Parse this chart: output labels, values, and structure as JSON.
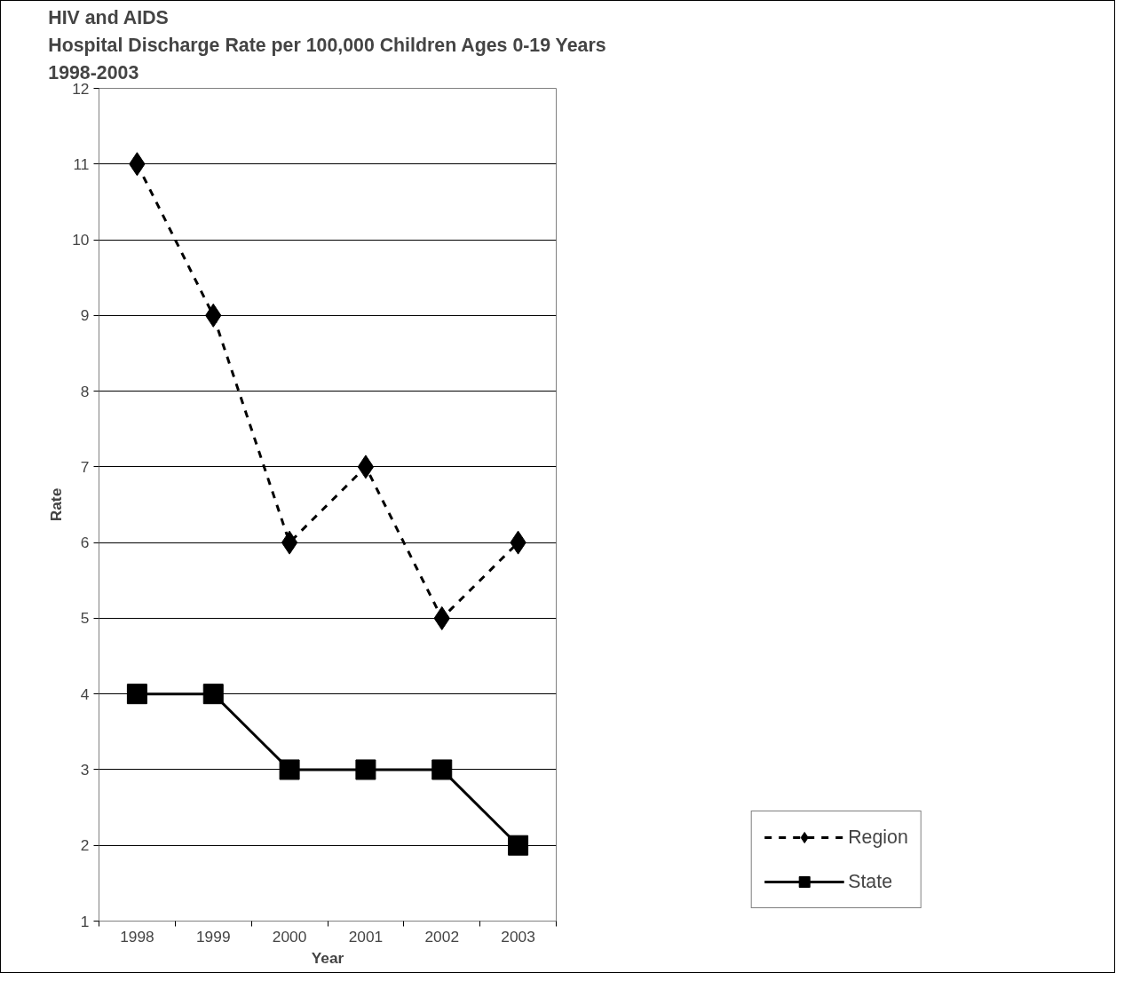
{
  "chart_data": {
    "type": "line",
    "title": "HIV and AIDS\nHospital Discharge Rate per 100,000 Children Ages 0-19 Years\n1998-2003",
    "xlabel": "Year",
    "ylabel": "Rate",
    "categories": [
      "1998",
      "1999",
      "2000",
      "2001",
      "2002",
      "2003"
    ],
    "series": [
      {
        "name": "Region",
        "color": "#000000",
        "values": [
          11,
          9,
          6,
          7,
          5,
          6
        ],
        "marker": "diamond",
        "line_style": "dashed"
      },
      {
        "name": "State",
        "color": "#000000",
        "values": [
          4,
          4,
          3,
          3,
          3,
          2
        ],
        "marker": "square",
        "line_style": "solid"
      }
    ],
    "ylim": [
      1,
      12
    ],
    "yticks": [
      1,
      2,
      3,
      4,
      5,
      6,
      7,
      8,
      9,
      10,
      11,
      12
    ],
    "grid": "y",
    "legend": "bottom right"
  }
}
